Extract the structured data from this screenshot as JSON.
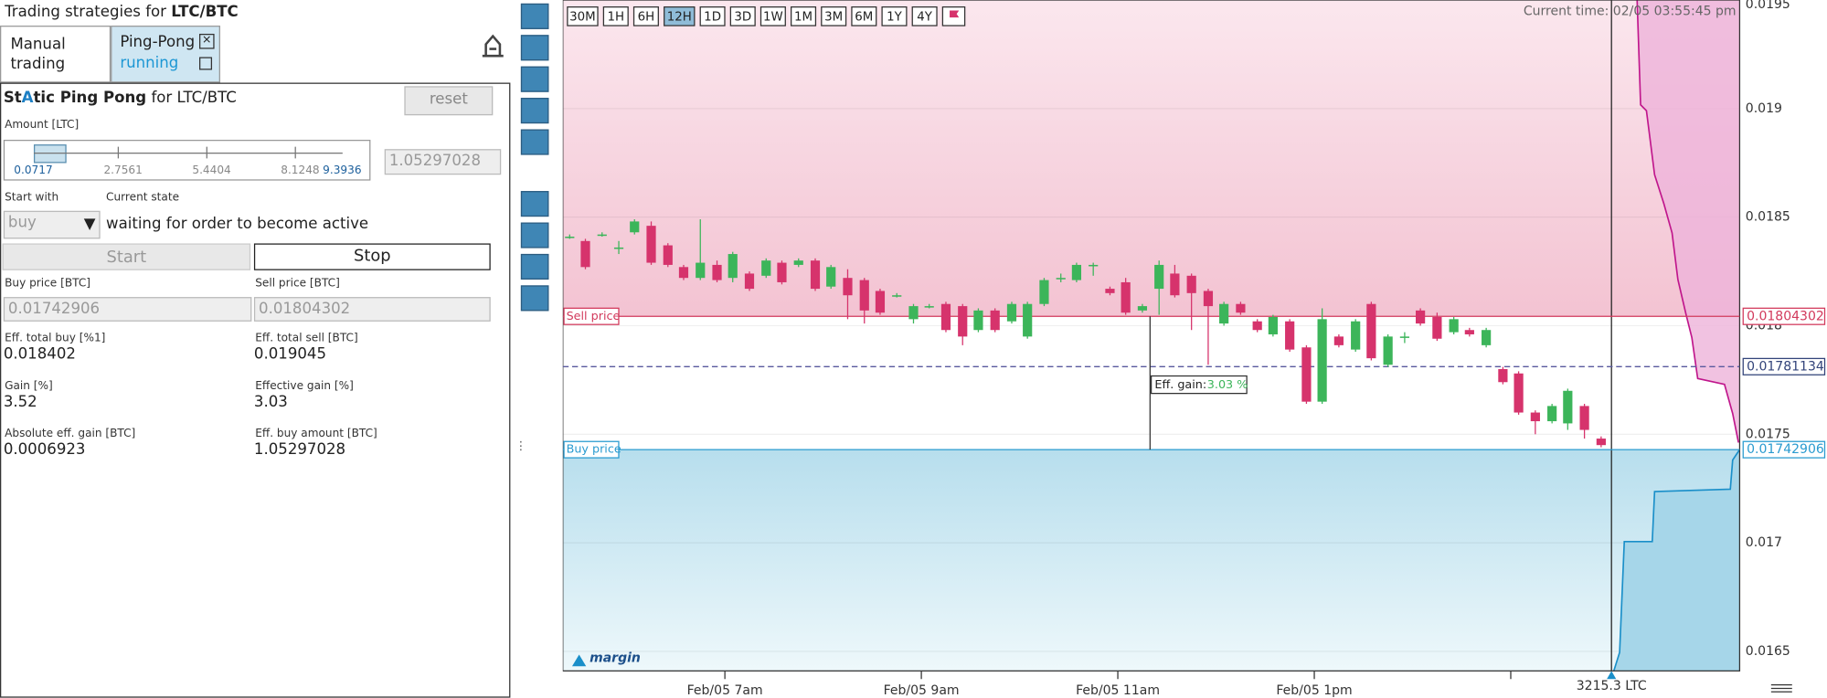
{
  "panel": {
    "title": "Trading strategies for ",
    "pair": "LTC/BTC",
    "tabs": [
      {
        "label": "Manual trading"
      },
      {
        "label": "Ping-Pong",
        "status": "running"
      }
    ],
    "strategy": {
      "name": [
        "St",
        "A",
        "tic Ping Pong"
      ],
      "suffix": " for LTC/BTC"
    },
    "reset": "reset",
    "amount_label": "Amount [LTC]",
    "slider_ticks": [
      0.0717,
      2.7561,
      5.4404,
      8.1248,
      9.3936
    ],
    "amount_value": 1.05297028,
    "start_with_label": "Start with",
    "state_label": "Current state",
    "start_with": "buy",
    "state": "waiting for order to become active",
    "start": "Start",
    "stop": "Stop",
    "fields": [
      {
        "label": "Buy price [BTC]",
        "value": 0.01742906
      },
      {
        "label": "Sell price [BTC]",
        "value": 0.01804302
      },
      {
        "label": "Eff. total buy [%1]",
        "value": 0.018402
      },
      {
        "label": "Eff. total sell [BTC]",
        "value": 0.019045
      },
      {
        "label": "Gain [%]",
        "value": 3.52
      },
      {
        "label": "Effective gain [%]",
        "value": 3.03
      },
      {
        "label": "Absolute eff. gain [BTC]",
        "value": 0.0006923
      },
      {
        "label": "Eff. buy amount [BTC]",
        "value": 1.05297028
      }
    ]
  },
  "chart": {
    "type": "candlestick",
    "timeframes": [
      {
        "label": "30M"
      },
      {
        "label": "1H"
      },
      {
        "label": "6H"
      },
      {
        "label": "12H",
        "active": true
      },
      {
        "label": "1D"
      },
      {
        "label": "3D"
      },
      {
        "label": "1W"
      },
      {
        "label": "1M"
      },
      {
        "label": "3M"
      },
      {
        "label": "6M"
      },
      {
        "label": "1Y"
      },
      {
        "label": "4Y"
      }
    ],
    "current_time": "Current time: 02/05 03:55:45 pm",
    "brand": "margin",
    "position_label": "3215.3 LTC",
    "sell_label": "Sell price",
    "buy_label": "Buy price",
    "sell_price": 0.01804302,
    "buy_price": 0.01742906,
    "mid_price": 0.01781134,
    "gain_label": "Eff. gain:",
    "gain_value": "3.03 %",
    "ylim": [
      0.01641,
      0.0195
    ],
    "yticks": [
      0.0165,
      0.017,
      0.0175,
      0.018,
      0.0185,
      0.019,
      0.0195
    ],
    "xlim": [
      5.35,
      17.33
    ],
    "xticks": [
      {
        "value": 7,
        "label": "Feb/05 7am"
      },
      {
        "value": 9,
        "label": "Feb/05 9am"
      },
      {
        "value": 11,
        "label": "Feb/05 11am"
      },
      {
        "value": 13,
        "label": "Feb/05 1pm"
      },
      {
        "value": 15,
        "label": null
      }
    ],
    "x": [
      5.42,
      5.58,
      5.75,
      5.92,
      6.08,
      6.25,
      6.42,
      6.58,
      6.75,
      6.92,
      7.08,
      7.25,
      7.42,
      7.58,
      7.75,
      7.92,
      8.08,
      8.25,
      8.42,
      8.58,
      8.75,
      8.92,
      9.08,
      9.25,
      9.42,
      9.58,
      9.75,
      9.92,
      10.08,
      10.25,
      10.42,
      10.58,
      10.75,
      10.92,
      11.08,
      11.25,
      11.42,
      11.58,
      11.75,
      11.92,
      12.08,
      12.25,
      12.42,
      12.58,
      12.75,
      12.92,
      13.08,
      13.25,
      13.42,
      13.58,
      13.75,
      13.92,
      14.08,
      14.25,
      14.42,
      14.58,
      14.75,
      14.92,
      15.08,
      15.25,
      15.42,
      15.58,
      15.75,
      15.92
    ],
    "open": [
      0.01841,
      0.01839,
      0.01842,
      0.01836,
      0.01843,
      0.01846,
      0.01837,
      0.01827,
      0.01822,
      0.01828,
      0.01822,
      0.01824,
      0.01823,
      0.01829,
      0.01828,
      0.0183,
      0.01818,
      0.01822,
      0.01821,
      0.01816,
      0.01814,
      0.01803,
      0.01809,
      0.0181,
      0.01809,
      0.01798,
      0.01807,
      0.01802,
      0.01795,
      0.0181,
      0.01822,
      0.01821,
      0.01828,
      0.01817,
      0.0182,
      0.01807,
      0.01817,
      0.01824,
      0.01823,
      0.01816,
      0.01801,
      0.0181,
      0.01802,
      0.01796,
      0.01802,
      0.0179,
      0.01765,
      0.01795,
      0.01789,
      0.0181,
      0.01782,
      0.01795,
      0.01807,
      0.01804,
      0.01797,
      0.01798,
      0.01791,
      0.0178,
      0.01778,
      0.0176,
      0.01756,
      0.01755,
      0.01763,
      0.01748
    ],
    "high": [
      0.01842,
      0.0184,
      0.01843,
      0.01839,
      0.01849,
      0.01848,
      0.01838,
      0.01828,
      0.01849,
      0.0183,
      0.01834,
      0.01825,
      0.01831,
      0.0183,
      0.01831,
      0.01831,
      0.01828,
      0.01826,
      0.01822,
      0.01817,
      0.01815,
      0.0181,
      0.0181,
      0.01811,
      0.0181,
      0.01808,
      0.01808,
      0.01811,
      0.01811,
      0.01822,
      0.01824,
      0.01829,
      0.01829,
      0.01818,
      0.01822,
      0.0181,
      0.0183,
      0.01828,
      0.01824,
      0.01817,
      0.01811,
      0.01811,
      0.01803,
      0.01805,
      0.01803,
      0.01791,
      0.01808,
      0.01796,
      0.01803,
      0.01811,
      0.01796,
      0.01797,
      0.01808,
      0.01806,
      0.01804,
      0.01799,
      0.01799,
      0.01781,
      0.01779,
      0.01761,
      0.01764,
      0.01771,
      0.01764,
      0.01749
    ],
    "low": [
      0.0184,
      0.01826,
      0.01841,
      0.01833,
      0.01842,
      0.01828,
      0.01827,
      0.01821,
      0.01821,
      0.0182,
      0.0182,
      0.01816,
      0.01822,
      0.01819,
      0.01827,
      0.01816,
      0.01817,
      0.01803,
      0.01801,
      0.01805,
      0.01813,
      0.01801,
      0.01808,
      0.01797,
      0.01791,
      0.01797,
      0.01797,
      0.01801,
      0.01794,
      0.01809,
      0.0182,
      0.0182,
      0.01823,
      0.01814,
      0.01805,
      0.01806,
      0.01805,
      0.01813,
      0.01798,
      0.01782,
      0.018,
      0.01805,
      0.01797,
      0.01795,
      0.01788,
      0.01764,
      0.01764,
      0.0179,
      0.01788,
      0.01784,
      0.01781,
      0.01792,
      0.018,
      0.01793,
      0.01796,
      0.01795,
      0.0179,
      0.01773,
      0.01759,
      0.0175,
      0.01755,
      0.01752,
      0.01748,
      0.01744
    ],
    "close": [
      0.01841,
      0.01827,
      0.01842,
      0.01836,
      0.01848,
      0.01829,
      0.01828,
      0.01822,
      0.01829,
      0.01821,
      0.01833,
      0.01817,
      0.0183,
      0.0182,
      0.0183,
      0.01817,
      0.01827,
      0.01814,
      0.01807,
      0.01806,
      0.01814,
      0.01809,
      0.01809,
      0.01798,
      0.01795,
      0.01807,
      0.01798,
      0.0181,
      0.0181,
      0.01821,
      0.01822,
      0.01828,
      0.01828,
      0.01815,
      0.01806,
      0.01809,
      0.01828,
      0.01814,
      0.01815,
      0.01809,
      0.0181,
      0.01806,
      0.01798,
      0.01804,
      0.01789,
      0.01765,
      0.01803,
      0.01791,
      0.01802,
      0.01785,
      0.01795,
      0.01795,
      0.01801,
      0.01794,
      0.01803,
      0.01796,
      0.01798,
      0.01774,
      0.0176,
      0.01756,
      0.01763,
      0.0177,
      0.01752,
      0.01745
    ]
  }
}
